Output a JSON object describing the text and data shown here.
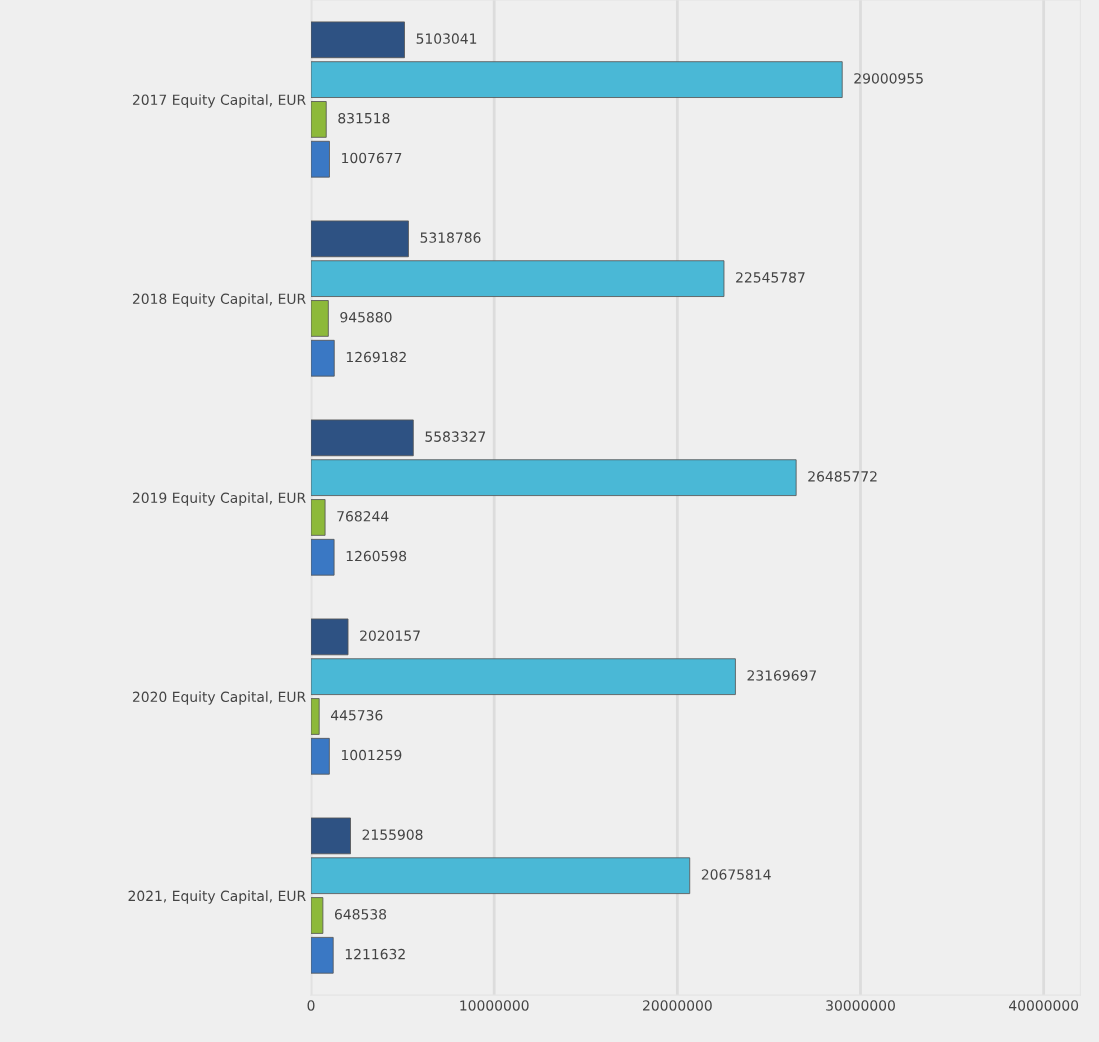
{
  "chart_data": {
    "type": "bar",
    "orientation": "horizontal",
    "categories": [
      "2017 Equity Capital, EUR",
      "2018 Equity Capital, EUR",
      "2019 Equity Capital, EUR",
      "2020 Equity Capital, EUR",
      "2021, Equity Capital, EUR"
    ],
    "series": [
      {
        "color": "#2e5283",
        "values": [
          5103041,
          5318786,
          5583327,
          2020157,
          2155908
        ]
      },
      {
        "color": "#4ab8d6",
        "values": [
          29000955,
          22545787,
          26485772,
          23169697,
          20675814
        ]
      },
      {
        "color": "#8db93a",
        "values": [
          831518,
          945880,
          768244,
          445736,
          648538
        ]
      },
      {
        "color": "#3a78c4",
        "values": [
          1007677,
          1269182,
          1260598,
          1001259,
          1211632
        ]
      }
    ],
    "xlim": [
      0,
      42000000
    ],
    "xticks": [
      0,
      10000000,
      20000000,
      30000000,
      40000000
    ],
    "grid": "x",
    "data_labels": true,
    "legend": false
  }
}
